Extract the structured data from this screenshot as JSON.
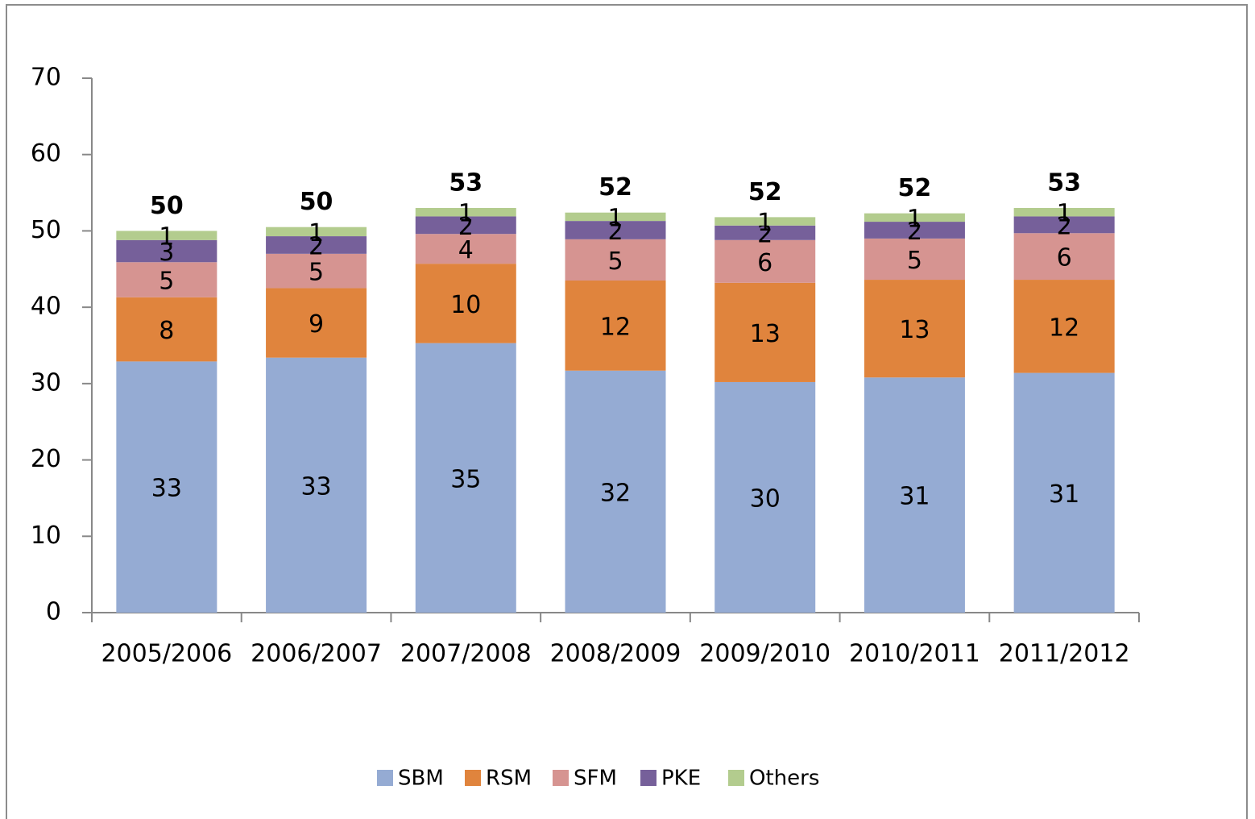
{
  "chart_data": {
    "type": "stacked_bar",
    "categories": [
      "2005/2006",
      "2006/2007",
      "2007/2008",
      "2008/2009",
      "2009/2010",
      "2010/2011",
      "2011/2012"
    ],
    "series": [
      {
        "name": "SBM",
        "color": "#95abd3",
        "values": [
          32.9,
          33.4,
          35.3,
          31.7,
          30.2,
          30.8,
          31.4
        ],
        "value_labels": [
          "33",
          "33",
          "35",
          "32",
          "30",
          "31",
          "31"
        ]
      },
      {
        "name": "RSM",
        "color": "#e0843d",
        "values": [
          8.4,
          9.1,
          10.4,
          11.8,
          13.0,
          12.8,
          12.2
        ],
        "value_labels": [
          "8",
          "9",
          "10",
          "12",
          "13",
          "13",
          "12"
        ]
      },
      {
        "name": "SFM",
        "color": "#d69491",
        "values": [
          4.6,
          4.5,
          3.9,
          5.4,
          5.6,
          5.4,
          6.1
        ],
        "value_labels": [
          "5",
          "5",
          "4",
          "5",
          "6",
          "5",
          "6"
        ]
      },
      {
        "name": "PKE",
        "color": "#76609a",
        "values": [
          2.9,
          2.3,
          2.3,
          2.4,
          1.9,
          2.2,
          2.2
        ],
        "value_labels": [
          "3",
          "2",
          "2",
          "2",
          "2",
          "2",
          "2"
        ]
      },
      {
        "name": "Others",
        "color": "#b3cc8e",
        "values": [
          1.2,
          1.2,
          1.1,
          1.1,
          1.1,
          1.1,
          1.1
        ],
        "value_labels": [
          "1",
          "1",
          "1",
          "1",
          "1",
          "1",
          "1"
        ]
      }
    ],
    "totals": [
      50,
      50,
      53,
      52,
      52,
      52,
      53
    ],
    "ylim": [
      0,
      70
    ],
    "yticks": [
      0,
      10,
      20,
      30,
      40,
      50,
      60,
      70
    ],
    "grid": false,
    "legend": "bottom"
  }
}
